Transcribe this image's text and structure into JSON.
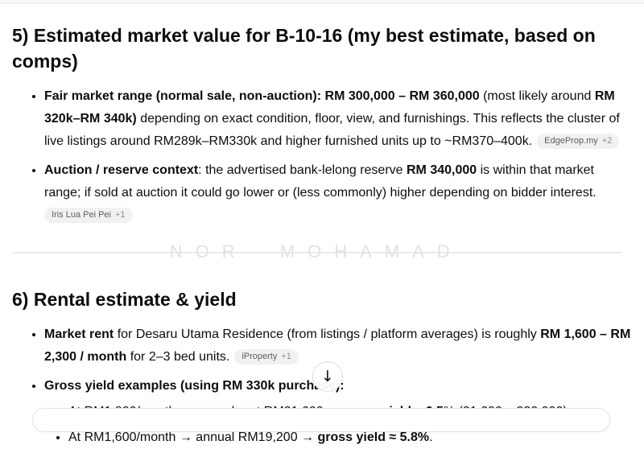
{
  "sections": [
    {
      "heading": "5) Estimated market value for B-10-16 (my best estimate, based on comps)",
      "bullets": [
        {
          "segments": [
            {
              "text": "Fair market range (normal sale, non-auction): RM 300,000 – RM 360,000",
              "bold": true
            },
            {
              "text": " (most likely around ",
              "bold": false
            },
            {
              "text": "RM 320k–RM 340k)",
              "bold": true
            },
            {
              "text": " depending on exact condition, floor, view, and furnishings. This reflects the cluster of live listings around RM289k–RM330k and higher furnished units up to ~RM370–400k.",
              "bold": false
            }
          ],
          "badge": {
            "label": "EdgeProp.my",
            "count": "+2"
          },
          "badge_newline": false
        },
        {
          "segments": [
            {
              "text": "Auction / reserve context",
              "bold": true
            },
            {
              "text": ": the advertised bank-lelong reserve ",
              "bold": false
            },
            {
              "text": "RM 340,000",
              "bold": true
            },
            {
              "text": " is within that market range; if sold at auction it could go lower or (less commonly) higher depending on bidder interest.",
              "bold": false
            }
          ],
          "badge": {
            "label": "Iris Lua Pei Pei",
            "count": "+1"
          },
          "badge_newline": true
        }
      ]
    },
    {
      "heading": "6) Rental estimate & yield",
      "bullets": [
        {
          "segments": [
            {
              "text": "Market rent",
              "bold": true
            },
            {
              "text": " for Desaru Utama Residence (from listings / platform averages) is roughly ",
              "bold": false
            },
            {
              "text": "RM 1,600 – RM 2,300 / month",
              "bold": true
            },
            {
              "text": " for 2–3 bed units.",
              "bold": false
            }
          ],
          "badge": {
            "label": "iProperty",
            "count": "+1"
          },
          "badge_newline": false
        },
        {
          "segments": [
            {
              "text": "Gross yield examples (using RM 330k purchase):",
              "bold": true
            }
          ],
          "children": [
            {
              "segments": [
                {
                  "text": "At RM1,800/month → annual rent RM21,600 → ",
                  "bold": false
                },
                {
                  "text": "gross yield ≈ 6.5",
                  "bold": true
                },
                {
                  "text": "% (21,600 ÷ 330,000).",
                  "bold": false
                }
              ]
            },
            {
              "segments": [
                {
                  "text": "At RM1,600/month → annual RM19,200 → ",
                  "bold": false
                },
                {
                  "text": "gross yield ≈ 5.8%",
                  "bold": true
                },
                {
                  "text": ".",
                  "bold": false
                }
              ]
            }
          ]
        }
      ]
    }
  ],
  "watermark": "NOR MOHAMAD",
  "scroll_button": {
    "icon": "arrow-down-icon",
    "glyph": "↓"
  },
  "colors": {
    "text": "#0d0d0d",
    "badge_bg": "#f1f1f1",
    "badge_text": "#5d5d5d",
    "watermark": "#e2e2e2",
    "divider": "#ebebeb"
  }
}
